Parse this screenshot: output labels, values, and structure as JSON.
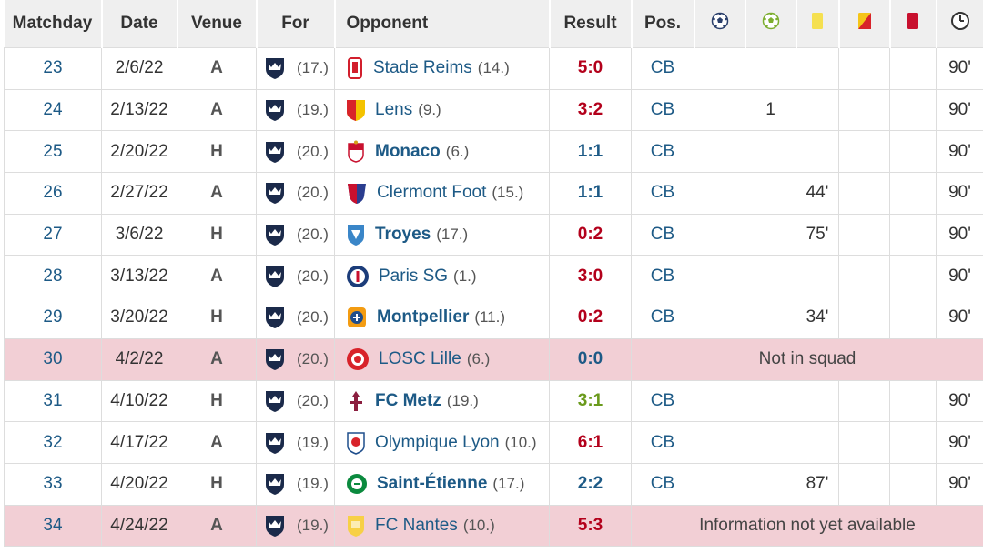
{
  "headers": {
    "matchday": "Matchday",
    "date": "Date",
    "venue": "Venue",
    "for": "For",
    "opponent": "Opponent",
    "result": "Result",
    "pos": "Pos.",
    "icons": [
      "goal-icon",
      "assist-icon",
      "yellow-card-icon",
      "yellow-red-card-icon",
      "red-card-icon",
      "minutes-clock-icon"
    ]
  },
  "colors": {
    "header_bg": "#efefef",
    "highlight_row": "#f2cfd5",
    "link": "#1d5a86",
    "loss": "#b3001b",
    "win": "#6a9a1c",
    "yellow_card": "#f5e050",
    "red_card": "#c8102e"
  },
  "rows": [
    {
      "matchday": "23",
      "date": "2/6/22",
      "venue": "A",
      "for_rank": "(17.)",
      "opponent": "Stade Reims",
      "opp_rank": "(14.)",
      "opp_crest": "reims-crest-icon",
      "result": "5:0",
      "result_type": "loss",
      "pos": "CB",
      "goals": "",
      "assists": "",
      "yellow": "",
      "yellow_red": "",
      "red": "",
      "minutes": "90'",
      "opp_bold": false
    },
    {
      "matchday": "24",
      "date": "2/13/22",
      "venue": "A",
      "for_rank": "(19.)",
      "opponent": "Lens",
      "opp_rank": "(9.)",
      "opp_crest": "lens-crest-icon",
      "result": "3:2",
      "result_type": "loss",
      "pos": "CB",
      "goals": "",
      "assists": "1",
      "yellow": "",
      "yellow_red": "",
      "red": "",
      "minutes": "90'",
      "opp_bold": false
    },
    {
      "matchday": "25",
      "date": "2/20/22",
      "venue": "H",
      "for_rank": "(20.)",
      "opponent": "Monaco",
      "opp_rank": "(6.)",
      "opp_crest": "monaco-crest-icon",
      "result": "1:1",
      "result_type": "draw",
      "pos": "CB",
      "goals": "",
      "assists": "",
      "yellow": "",
      "yellow_red": "",
      "red": "",
      "minutes": "90'",
      "opp_bold": true
    },
    {
      "matchday": "26",
      "date": "2/27/22",
      "venue": "A",
      "for_rank": "(20.)",
      "opponent": "Clermont Foot",
      "opp_rank": "(15.)",
      "opp_crest": "clermont-crest-icon",
      "result": "1:1",
      "result_type": "draw",
      "pos": "CB",
      "goals": "",
      "assists": "",
      "yellow": "44'",
      "yellow_red": "",
      "red": "",
      "minutes": "90'",
      "opp_bold": false
    },
    {
      "matchday": "27",
      "date": "3/6/22",
      "venue": "H",
      "for_rank": "(20.)",
      "opponent": "Troyes",
      "opp_rank": "(17.)",
      "opp_crest": "troyes-crest-icon",
      "result": "0:2",
      "result_type": "loss",
      "pos": "CB",
      "goals": "",
      "assists": "",
      "yellow": "75'",
      "yellow_red": "",
      "red": "",
      "minutes": "90'",
      "opp_bold": true
    },
    {
      "matchday": "28",
      "date": "3/13/22",
      "venue": "A",
      "for_rank": "(20.)",
      "opponent": "Paris SG",
      "opp_rank": "(1.)",
      "opp_crest": "psg-crest-icon",
      "result": "3:0",
      "result_type": "loss",
      "pos": "CB",
      "goals": "",
      "assists": "",
      "yellow": "",
      "yellow_red": "",
      "red": "",
      "minutes": "90'",
      "opp_bold": false
    },
    {
      "matchday": "29",
      "date": "3/20/22",
      "venue": "H",
      "for_rank": "(20.)",
      "opponent": "Montpellier",
      "opp_rank": "(11.)",
      "opp_crest": "montpellier-crest-icon",
      "result": "0:2",
      "result_type": "loss",
      "pos": "CB",
      "goals": "",
      "assists": "",
      "yellow": "34'",
      "yellow_red": "",
      "red": "",
      "minutes": "90'",
      "opp_bold": true
    },
    {
      "matchday": "30",
      "date": "4/2/22",
      "venue": "A",
      "for_rank": "(20.)",
      "opponent": "LOSC Lille",
      "opp_rank": "(6.)",
      "opp_crest": "lille-crest-icon",
      "result": "0:0",
      "result_type": "draw",
      "message": "Not in squad",
      "opp_bold": false
    },
    {
      "matchday": "31",
      "date": "4/10/22",
      "venue": "H",
      "for_rank": "(20.)",
      "opponent": "FC Metz",
      "opp_rank": "(19.)",
      "opp_crest": "metz-crest-icon",
      "result": "3:1",
      "result_type": "win",
      "pos": "CB",
      "goals": "",
      "assists": "",
      "yellow": "",
      "yellow_red": "",
      "red": "",
      "minutes": "90'",
      "opp_bold": true
    },
    {
      "matchday": "32",
      "date": "4/17/22",
      "venue": "A",
      "for_rank": "(19.)",
      "opponent": "Olympique Lyon",
      "opp_rank": "(10.)",
      "opp_crest": "lyon-crest-icon",
      "result": "6:1",
      "result_type": "loss",
      "pos": "CB",
      "goals": "",
      "assists": "",
      "yellow": "",
      "yellow_red": "",
      "red": "",
      "minutes": "90'",
      "opp_bold": false
    },
    {
      "matchday": "33",
      "date": "4/20/22",
      "venue": "H",
      "for_rank": "(19.)",
      "opponent": "Saint-Étienne",
      "opp_rank": "(17.)",
      "opp_crest": "saint-etienne-crest-icon",
      "result": "2:2",
      "result_type": "draw",
      "pos": "CB",
      "goals": "",
      "assists": "",
      "yellow": "87'",
      "yellow_red": "",
      "red": "",
      "minutes": "90'",
      "opp_bold": true
    },
    {
      "matchday": "34",
      "date": "4/24/22",
      "venue": "A",
      "for_rank": "(19.)",
      "opponent": "FC Nantes",
      "opp_rank": "(10.)",
      "opp_crest": "nantes-crest-icon",
      "result": "5:3",
      "result_type": "loss",
      "message": "Information not yet available",
      "opp_bold": false
    }
  ]
}
